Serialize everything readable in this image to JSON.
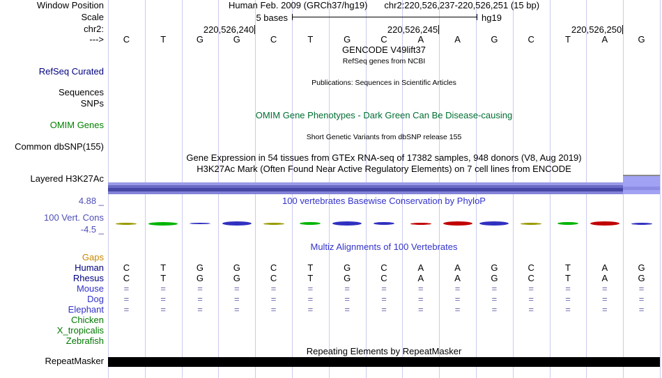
{
  "colors": {
    "navy": "#000080",
    "green_label": "#008000",
    "omim_header": "#006e32",
    "blue_header": "#3333cc",
    "cons_label": "#4e4eb8",
    "letter": "#000000",
    "grid": "#cacaef",
    "repeat_bar": "#000000",
    "h3k": {
      "top": "#9a9ae6",
      "mid": "#6a6ac6",
      "dark": "#4646a4",
      "bottom": "#8282d8",
      "right": "#a2a2f4",
      "right_inner": "#8c8ce4",
      "cap": "#8a8a8a"
    }
  },
  "header": {
    "assembly_line": "Human Feb. 2009 (GRCh37/hg19)",
    "position_line": "chr2:220,526,237-220,526,251 (15 bp)",
    "scale_text": "5 bases",
    "genome_label": "hg19",
    "coords": [
      {
        "label": "220,526,240",
        "tick": 4
      },
      {
        "label": "220,526,245",
        "tick": 9
      },
      {
        "label": "220,526,250",
        "tick": 14
      }
    ]
  },
  "left_labels": {
    "window_position": "Window Position",
    "scale": "Scale",
    "chrom": "chr2:",
    "strand": "--->",
    "refseq": "RefSeq Curated",
    "sequences": "Sequences",
    "snps": "SNPs",
    "omim": "OMIM Genes",
    "dbsnp": "Common dbSNP(155)",
    "h3k27ac": "Layered H3K27Ac",
    "phylop_max": "4.88 _",
    "phylop_name": "100 Vert. Cons",
    "phylop_min": "-4.5 _",
    "repeatmasker": "RepeatMasker"
  },
  "sequence": [
    "C",
    "T",
    "G",
    "G",
    "C",
    "T",
    "G",
    "C",
    "A",
    "A",
    "G",
    "C",
    "T",
    "A",
    "G"
  ],
  "track_titles": {
    "gencode": "GENCODE V49lift37",
    "gencode_sub": "RefSeq genes from NCBI",
    "publications": "Publications: Sequences in Scientific Articles",
    "omim": "OMIM Gene Phenotypes - Dark Green Can Be Disease-causing",
    "dbsnp": "Short Genetic Variants from dbSNP release 155",
    "gtex": "Gene Expression in 54 tissues from GTEx RNA-seq of 17382 samples, 948 donors (V8, Aug 2019)",
    "h3k27ac": "H3K27Ac Mark (Often Found Near Active Regulatory Elements) on 7 cell lines from ENCODE",
    "phylop": "100 vertebrates Basewise Conservation by PhyloP",
    "multiz": "Multiz Alignments of 100 Vertebrates",
    "repeatmasker": "Repeating Elements by RepeatMasker"
  },
  "multiz_species": [
    {
      "name": "Gaps",
      "color": "#c88800",
      "cell_color": "#c88800",
      "cells": []
    },
    {
      "name": "Human",
      "color": "#000080",
      "cell_color": "#000000",
      "cells": [
        "C",
        "T",
        "G",
        "G",
        "C",
        "T",
        "G",
        "C",
        "A",
        "A",
        "G",
        "C",
        "T",
        "A",
        "G"
      ]
    },
    {
      "name": "Rhesus",
      "color": "#000080",
      "cell_color": "#000000",
      "cells": [
        "C",
        "T",
        "G",
        "G",
        "C",
        "T",
        "G",
        "C",
        "A",
        "A",
        "G",
        "C",
        "T",
        "A",
        "G"
      ]
    },
    {
      "name": "Mouse",
      "color": "#3232c8",
      "cell_color": "#6868a8",
      "cells": [
        "=",
        "=",
        "=",
        "=",
        "=",
        "=",
        "=",
        "=",
        "=",
        "=",
        "=",
        "=",
        "=",
        "=",
        "="
      ]
    },
    {
      "name": "Dog",
      "color": "#3232c8",
      "cell_color": "#6868a8",
      "cells": [
        "=",
        "=",
        "=",
        "=",
        "=",
        "=",
        "=",
        "=",
        "=",
        "=",
        "=",
        "=",
        "=",
        "=",
        "="
      ]
    },
    {
      "name": "Elephant",
      "color": "#3232c8",
      "cell_color": "#6868a8",
      "cells": [
        "=",
        "=",
        "=",
        "=",
        "=",
        "=",
        "=",
        "=",
        "=",
        "=",
        "=",
        "=",
        "=",
        "=",
        "="
      ]
    },
    {
      "name": "Chicken",
      "color": "#007800",
      "cell_color": "#007800",
      "cells": []
    },
    {
      "name": "X_tropicalis",
      "color": "#007800",
      "cell_color": "#007800",
      "cells": []
    },
    {
      "name": "Zebrafish",
      "color": "#007800",
      "cell_color": "#007800",
      "cells": []
    }
  ],
  "phylop_marks": [
    {
      "c": "#999900",
      "h": 3
    },
    {
      "c": "#00b400",
      "h": 5
    },
    {
      "c": "#3030c0",
      "h": 2
    },
    {
      "c": "#3030c0",
      "h": 6
    },
    {
      "c": "#999900",
      "h": 3
    },
    {
      "c": "#00b400",
      "h": 4
    },
    {
      "c": "#3030c0",
      "h": 6
    },
    {
      "c": "#3030c0",
      "h": 4
    },
    {
      "c": "#c00000",
      "h": 3
    },
    {
      "c": "#c00000",
      "h": 6
    },
    {
      "c": "#3030c0",
      "h": 6
    },
    {
      "c": "#999900",
      "h": 3
    },
    {
      "c": "#00b400",
      "h": 4
    },
    {
      "c": "#c00000",
      "h": 6
    },
    {
      "c": "#3030c0",
      "h": 3
    }
  ]
}
